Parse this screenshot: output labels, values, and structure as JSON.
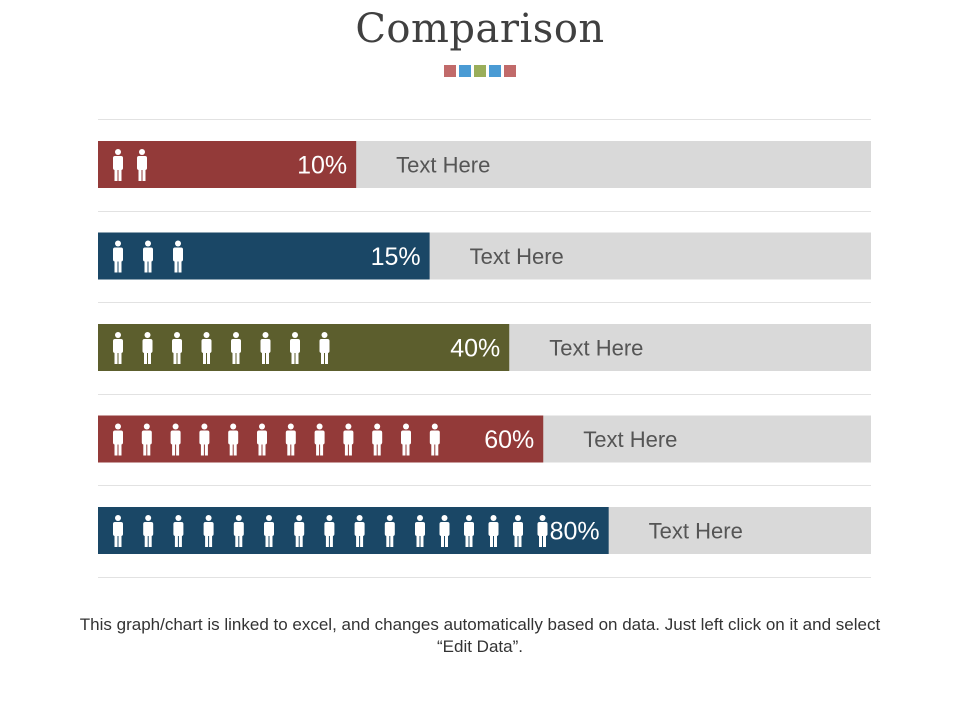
{
  "slide": {
    "title": "Comparison",
    "decor_squares": [
      "#c16a6a",
      "#4a9bd4",
      "#9aae5a",
      "#4a9bd4",
      "#c16a6a"
    ],
    "note": "This graph/chart is linked to excel, and changes automatically based on data. Just left click on it and select “Edit Data”."
  },
  "chart_data": {
    "type": "bar",
    "orientation": "horizontal",
    "xlim": [
      0,
      100
    ],
    "unit": "%",
    "icon": "person-icon",
    "track_color": "#d9d9d9",
    "categories": [
      "Text Here",
      "Text Here",
      "Text Here",
      "Text Here",
      "Text Here"
    ],
    "values": [
      10,
      15,
      40,
      60,
      80
    ],
    "value_labels": [
      "10%",
      "15%",
      "40%",
      "60%",
      "80%"
    ],
    "icon_counts": [
      2,
      3,
      8,
      12,
      16
    ],
    "colors": [
      "#933a39",
      "#1a4766",
      "#5c5e2d",
      "#933a39",
      "#1a4766"
    ]
  }
}
